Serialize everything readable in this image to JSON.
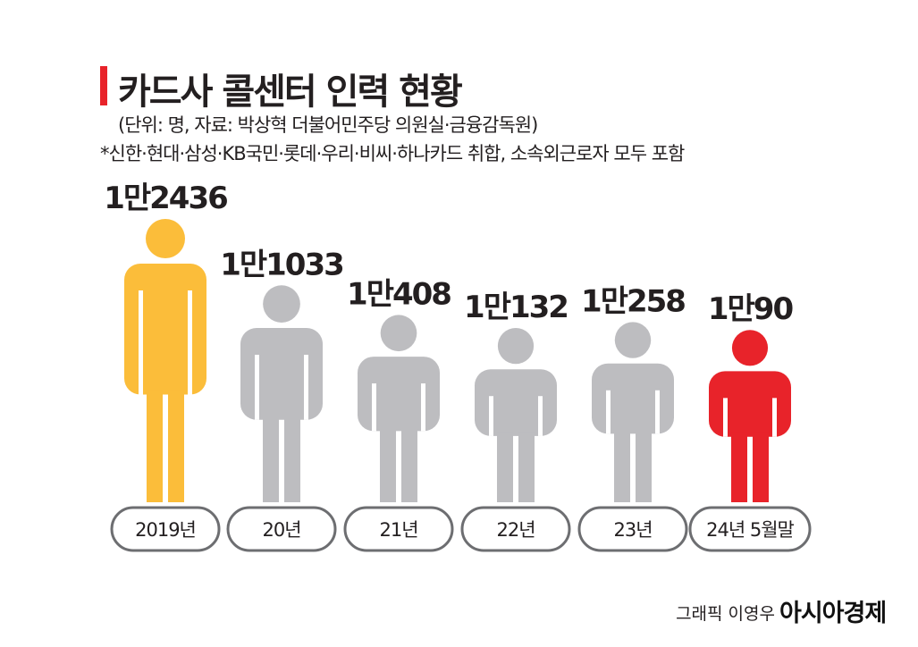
{
  "title": "카드사 콜센터 인력 현황",
  "subtitle": "(단위: 명, 자료: 박상혁 더불어민주당 의원실·금융감독원)",
  "note": "*신한·현대·삼성·KB국민·롯데·우리·비씨·하나카드 취합, 소속외근로자 모두 포함",
  "credit": "그래픽 이영우",
  "brand": "아시아경제",
  "colors": {
    "highlight_first": "#fbbd3a",
    "neutral": "#bdbdc0",
    "highlight_last": "#e8232a",
    "accent": "#e8232a"
  },
  "chart_data": {
    "type": "bar",
    "title": "카드사 콜센터 인력 현황",
    "unit": "명",
    "categories": [
      "2019년",
      "20년",
      "21년",
      "22년",
      "23년",
      "24년 5월말"
    ],
    "values": [
      12436,
      11033,
      10408,
      10132,
      10258,
      10090
    ],
    "value_labels": [
      "1만2436",
      "1만1033",
      "1만408",
      "1만132",
      "1만258",
      "1만90"
    ],
    "bar_colors": [
      "#fbbd3a",
      "#bdbdc0",
      "#bdbdc0",
      "#bdbdc0",
      "#bdbdc0",
      "#e8232a"
    ]
  }
}
